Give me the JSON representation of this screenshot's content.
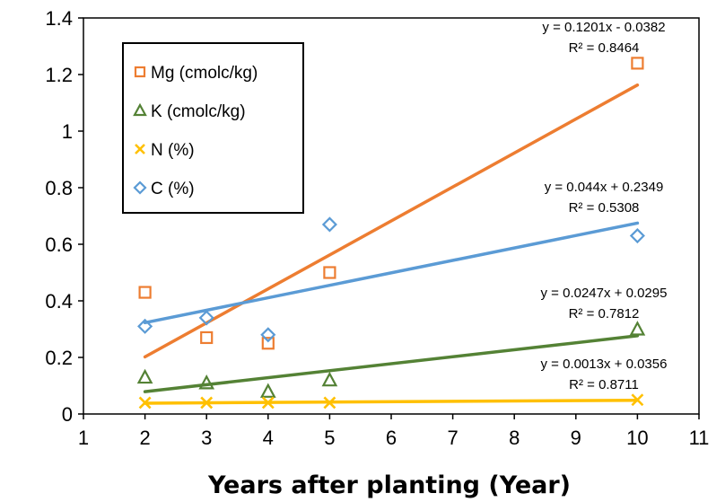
{
  "chart_data": {
    "type": "scatter",
    "title": "",
    "xlabel": "Years after planting (Year)",
    "ylabel": "",
    "xlim": [
      1,
      11
    ],
    "ylim": [
      0,
      1.4
    ],
    "xticks": [
      "1",
      "2",
      "3",
      "4",
      "5",
      "6",
      "7",
      "8",
      "9",
      "10",
      "11"
    ],
    "yticks": [
      "0",
      "0.2",
      "0.4",
      "0.6",
      "0.8",
      "1",
      "1.2",
      "1.4"
    ],
    "grid": false,
    "legend_position": "top-left",
    "series": [
      {
        "name": "Mg (cmolc/kg)",
        "marker": "square",
        "color": "#ed7d31",
        "x": [
          2,
          3,
          4,
          5,
          10
        ],
        "y": [
          0.43,
          0.27,
          0.25,
          0.5,
          1.24
        ],
        "trendline": {
          "slope": 0.1201,
          "intercept": -0.0382,
          "equation": "y = 0.1201x - 0.0382",
          "r2": "R² = 0.8464"
        }
      },
      {
        "name": "K (cmolc/kg)",
        "marker": "triangle",
        "color": "#548235",
        "x": [
          2,
          3,
          4,
          5,
          10
        ],
        "y": [
          0.13,
          0.11,
          0.08,
          0.12,
          0.3
        ],
        "trendline": {
          "slope": 0.0247,
          "intercept": 0.0295,
          "equation": "y = 0.0247x + 0.0295",
          "r2": "R² = 0.7812"
        }
      },
      {
        "name": "N (%)",
        "marker": "x",
        "color": "#ffc000",
        "x": [
          2,
          3,
          4,
          5,
          10
        ],
        "y": [
          0.04,
          0.04,
          0.04,
          0.04,
          0.05
        ],
        "trendline": {
          "slope": 0.0013,
          "intercept": 0.0356,
          "equation": "y = 0.0013x + 0.0356",
          "r2": "R² = 0.8711"
        }
      },
      {
        "name": "C (%)",
        "marker": "diamond",
        "color": "#5b9bd5",
        "x": [
          2,
          3,
          4,
          5,
          10
        ],
        "y": [
          0.31,
          0.34,
          0.28,
          0.67,
          0.63
        ],
        "trendline": {
          "slope": 0.044,
          "intercept": 0.2349,
          "equation": "y = 0.044x + 0.2349",
          "r2": "R² = 0.5308"
        }
      }
    ]
  }
}
